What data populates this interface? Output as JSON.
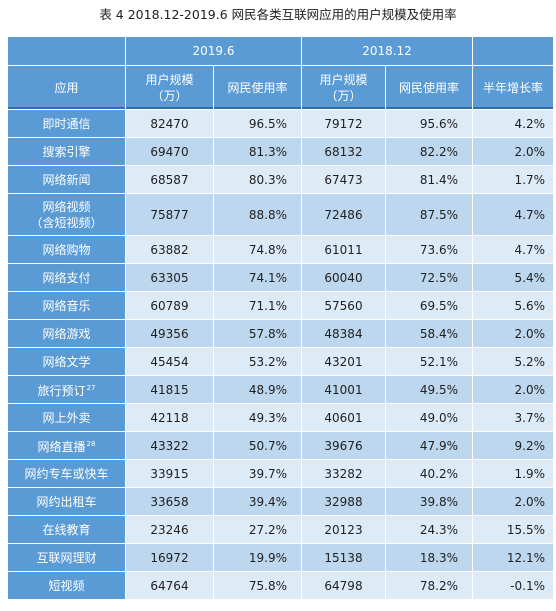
{
  "title": "表 4    2018.12-2019.6 网民各类互联网应用的用户规模及使用率",
  "headers": {
    "period_2019": "2019.6",
    "period_2018": "2018.12",
    "app": "应用",
    "users_2019_line1": "用户规模",
    "users_2019_line2": "（万）",
    "rate_2019": "网民使用率",
    "users_2018_line1": "用户规模",
    "users_2018_line2": "（万）",
    "rate_2018": "网民使用率",
    "growth": "半年增长率"
  },
  "rows": [
    {
      "app": "即时通信",
      "sup": "",
      "users_2019": "82470",
      "rate_2019": "96.5%",
      "users_2018": "79172",
      "rate_2018": "95.6%",
      "growth": "4.2%"
    },
    {
      "app": "搜索引擎",
      "sup": "",
      "users_2019": "69470",
      "rate_2019": "81.3%",
      "users_2018": "68132",
      "rate_2018": "82.2%",
      "growth": "2.0%"
    },
    {
      "app": "网络新闻",
      "sup": "",
      "users_2019": "68587",
      "rate_2019": "80.3%",
      "users_2018": "67473",
      "rate_2018": "81.4%",
      "growth": "1.7%"
    },
    {
      "app": "网络视频",
      "app_line2": "（含短视频）",
      "sup": "",
      "users_2019": "75877",
      "rate_2019": "88.8%",
      "users_2018": "72486",
      "rate_2018": "87.5%",
      "growth": "4.7%"
    },
    {
      "app": "网络购物",
      "sup": "",
      "users_2019": "63882",
      "rate_2019": "74.8%",
      "users_2018": "61011",
      "rate_2018": "73.6%",
      "growth": "4.7%"
    },
    {
      "app": "网络支付",
      "sup": "",
      "users_2019": "63305",
      "rate_2019": "74.1%",
      "users_2018": "60040",
      "rate_2018": "72.5%",
      "growth": "5.4%"
    },
    {
      "app": "网络音乐",
      "sup": "",
      "users_2019": "60789",
      "rate_2019": "71.1%",
      "users_2018": "57560",
      "rate_2018": "69.5%",
      "growth": "5.6%"
    },
    {
      "app": "网络游戏",
      "sup": "",
      "users_2019": "49356",
      "rate_2019": "57.8%",
      "users_2018": "48384",
      "rate_2018": "58.4%",
      "growth": "2.0%"
    },
    {
      "app": "网络文学",
      "sup": "",
      "users_2019": "45454",
      "rate_2019": "53.2%",
      "users_2018": "43201",
      "rate_2018": "52.1%",
      "growth": "5.2%"
    },
    {
      "app": "旅行预订",
      "sup": "27",
      "users_2019": "41815",
      "rate_2019": "48.9%",
      "users_2018": "41001",
      "rate_2018": "49.5%",
      "growth": "2.0%"
    },
    {
      "app": "网上外卖",
      "sup": "",
      "users_2019": "42118",
      "rate_2019": "49.3%",
      "users_2018": "40601",
      "rate_2018": "49.0%",
      "growth": "3.7%"
    },
    {
      "app": "网络直播",
      "sup": "28",
      "users_2019": "43322",
      "rate_2019": "50.7%",
      "users_2018": "39676",
      "rate_2018": "47.9%",
      "growth": "9.2%"
    },
    {
      "app": "网约专车或快车",
      "sup": "",
      "users_2019": "33915",
      "rate_2019": "39.7%",
      "users_2018": "33282",
      "rate_2018": "40.2%",
      "growth": "1.9%"
    },
    {
      "app": "网约出租车",
      "sup": "",
      "users_2019": "33658",
      "rate_2019": "39.4%",
      "users_2018": "32988",
      "rate_2018": "39.8%",
      "growth": "2.0%"
    },
    {
      "app": "在线教育",
      "sup": "",
      "users_2019": "23246",
      "rate_2019": "27.2%",
      "users_2018": "20123",
      "rate_2018": "24.3%",
      "growth": "15.5%"
    },
    {
      "app": "互联网理财",
      "sup": "",
      "users_2019": "16972",
      "rate_2019": "19.9%",
      "users_2018": "15138",
      "rate_2018": "18.3%",
      "growth": "12.1%"
    },
    {
      "app": "短视频",
      "sup": "",
      "users_2019": "64764",
      "rate_2019": "75.8%",
      "users_2018": "64798",
      "rate_2018": "78.2%",
      "growth": "-0.1%"
    }
  ],
  "colors": {
    "header_blue": "#5b9bd5",
    "row_light": "#ddebf7",
    "row_mid": "#bdd7ee"
  }
}
